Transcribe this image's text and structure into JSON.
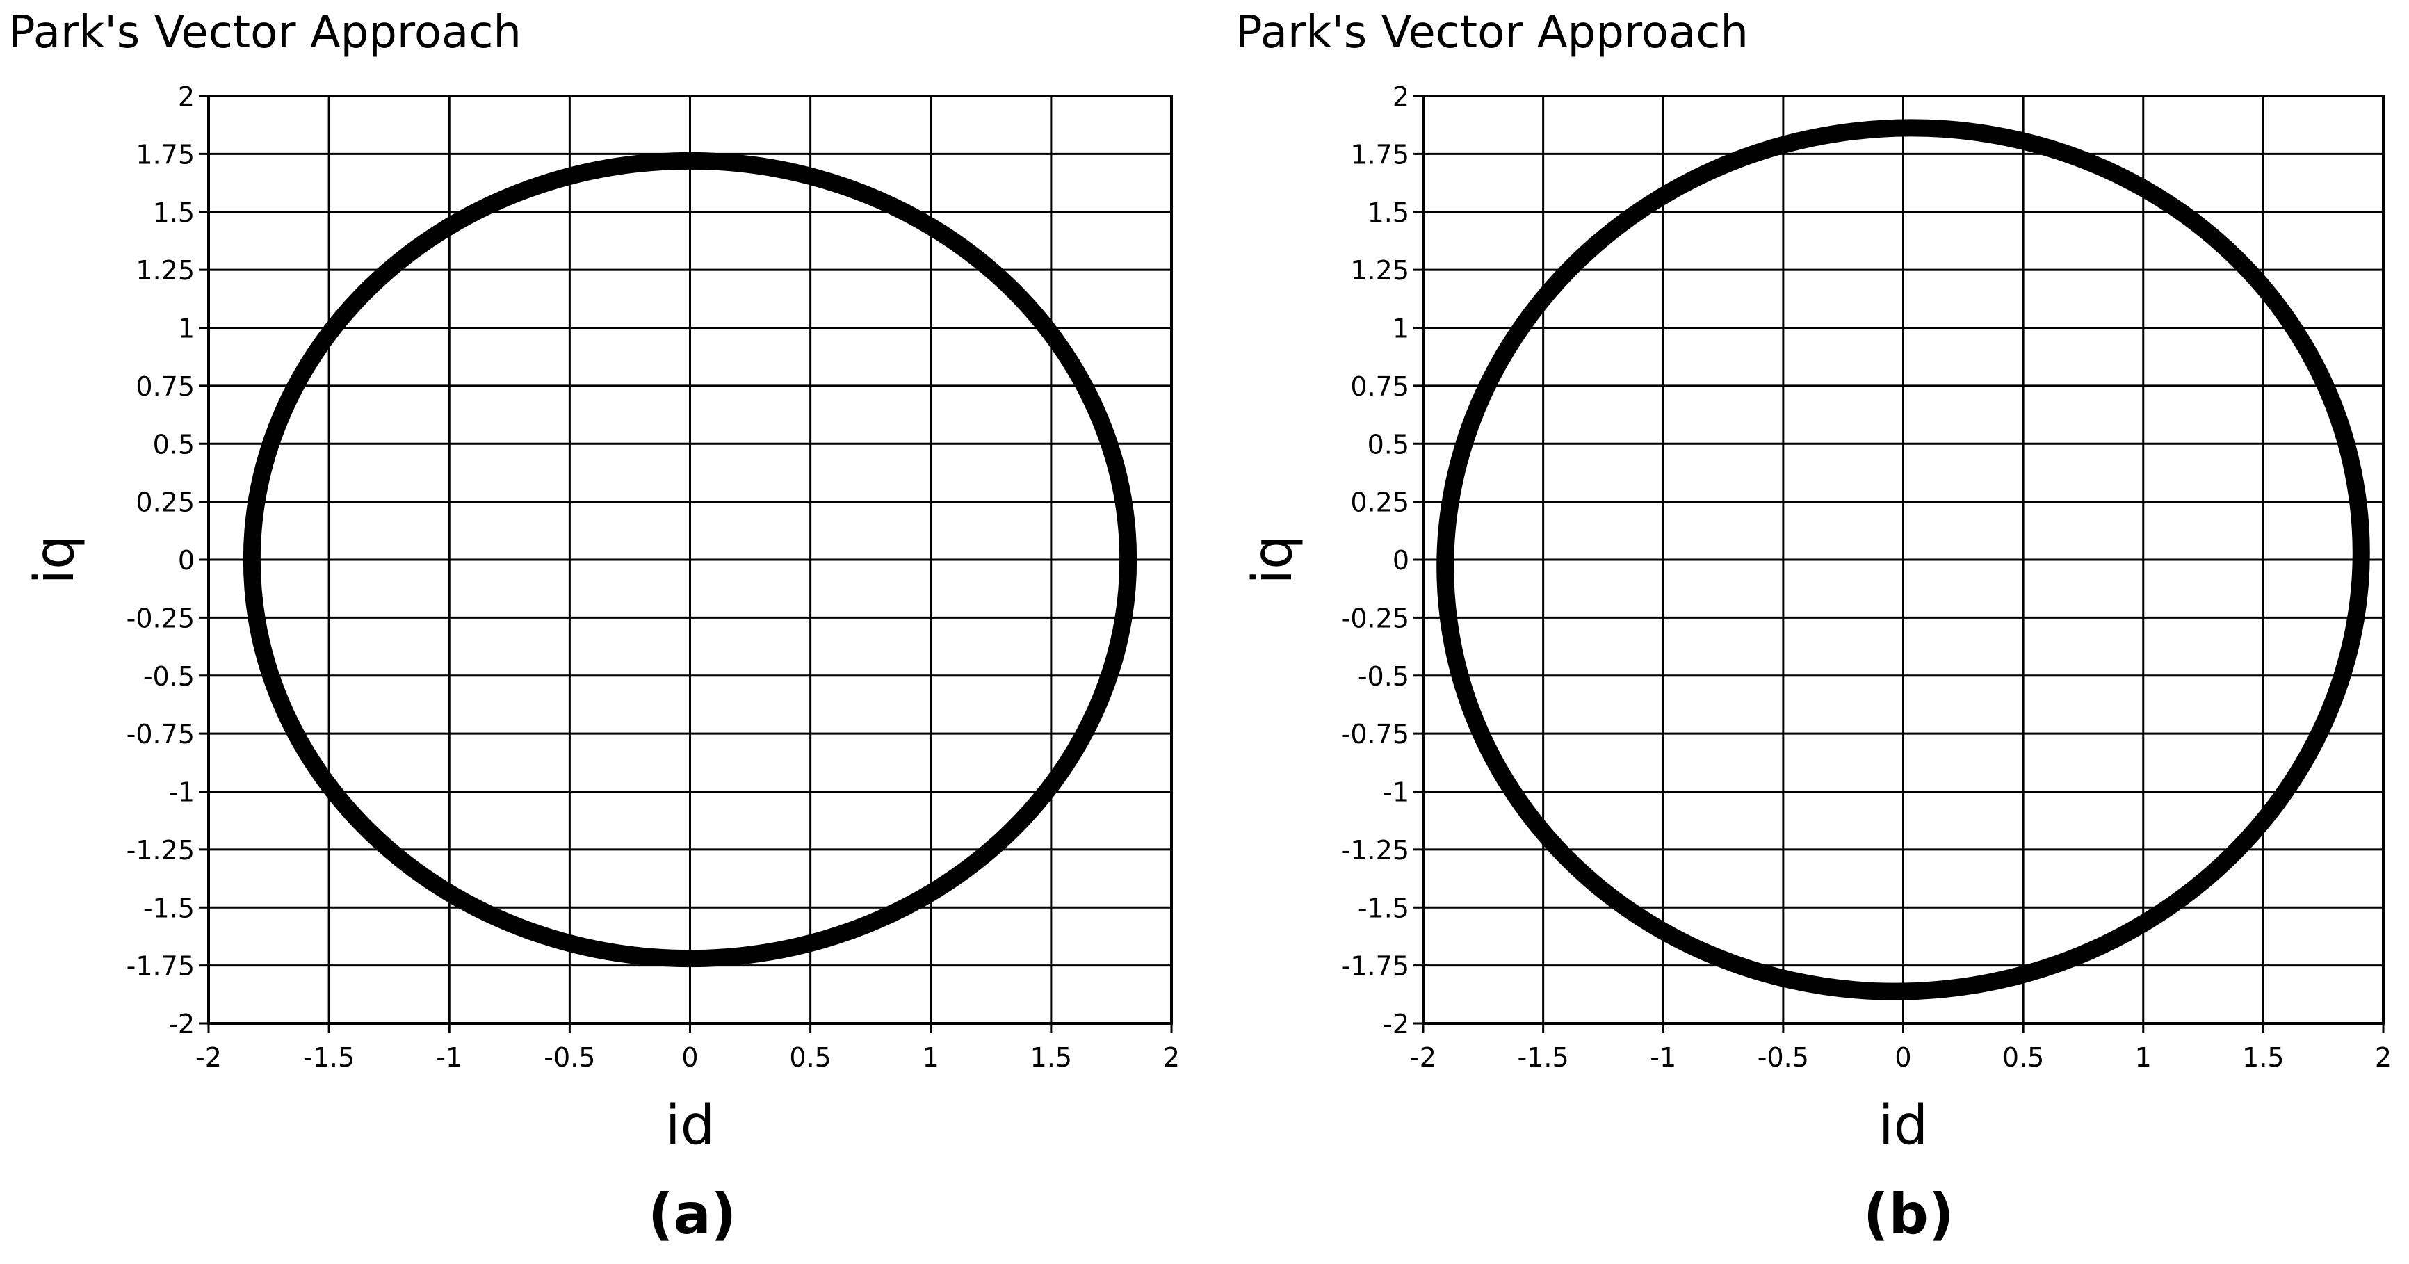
{
  "chart_data": [
    {
      "type": "scatter",
      "title": "Park's Vector Approach",
      "xlabel": "id",
      "ylabel": "iq",
      "caption": "(a)",
      "xlim": [
        -2,
        2
      ],
      "ylim": [
        -2,
        2
      ],
      "x_ticks": [
        -2,
        -1.5,
        -1,
        -0.5,
        0,
        0.5,
        1,
        1.5,
        2
      ],
      "x_tick_labels": [
        "-2",
        "-1.5",
        "-1",
        "-0.5",
        "0",
        "0.5",
        "1",
        "1.5",
        "2"
      ],
      "y_ticks": [
        2,
        1.75,
        1.5,
        1.25,
        1,
        0.75,
        0.5,
        0.25,
        0,
        -0.25,
        -0.5,
        -0.75,
        -1,
        -1.25,
        -1.5,
        -1.75,
        -2
      ],
      "y_tick_labels": [
        "2",
        "1.75",
        "1.5",
        "1.25",
        "1",
        "0.75",
        "0.5",
        "0.25",
        "0",
        "-0.25",
        "-0.5",
        "-0.75",
        "-1",
        "-1.25",
        "-1.5",
        "-1.75",
        "-2"
      ],
      "grid": true,
      "series": [
        {
          "shape": "ellipse",
          "center": [
            0,
            0
          ],
          "radius_x": 1.82,
          "radius_y": 1.72,
          "tilt_deg": 0,
          "color": "#000000"
        }
      ]
    },
    {
      "type": "scatter",
      "title": "Park's Vector Approach",
      "xlabel": "id",
      "ylabel": "iq",
      "caption": "(b)",
      "xlim": [
        -2,
        2
      ],
      "ylim": [
        -2,
        2
      ],
      "x_ticks": [
        -2,
        -1.5,
        -1,
        -0.5,
        0,
        0.5,
        1,
        1.5,
        2
      ],
      "x_tick_labels": [
        "-2",
        "-1.5",
        "-1",
        "-0.5",
        "0",
        "0.5",
        "1",
        "1.5",
        "2"
      ],
      "y_ticks": [
        2,
        1.75,
        1.5,
        1.25,
        1,
        0.75,
        0.5,
        0.25,
        0,
        -0.25,
        -0.5,
        -0.75,
        -1,
        -1.25,
        -1.5,
        -1.75,
        -2
      ],
      "y_tick_labels": [
        "2",
        "1.75",
        "1.5",
        "1.25",
        "1",
        "0.75",
        "0.5",
        "0.25",
        "0",
        "-0.25",
        "-0.5",
        "-0.75",
        "-1",
        "-1.25",
        "-1.5",
        "-1.75",
        "-2"
      ],
      "grid": true,
      "series": [
        {
          "shape": "ellipse",
          "center": [
            0,
            0
          ],
          "radius_x": 1.91,
          "radius_y": 1.86,
          "tilt_deg": -8,
          "color": "#000000"
        }
      ]
    }
  ]
}
